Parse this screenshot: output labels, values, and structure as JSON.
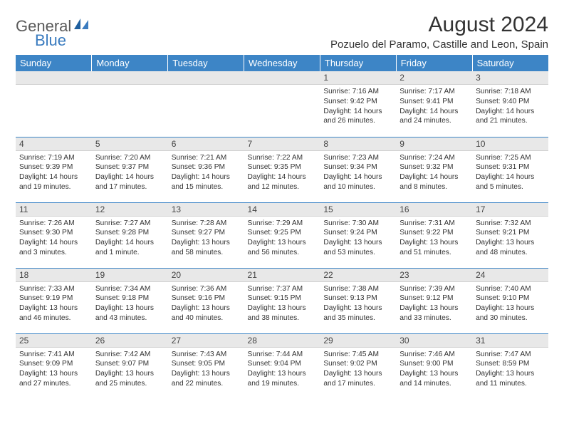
{
  "logo": {
    "text1": "General",
    "text2": "Blue"
  },
  "title": "August 2024",
  "location": "Pozuelo del Paramo, Castille and Leon, Spain",
  "weekdays": [
    "Sunday",
    "Monday",
    "Tuesday",
    "Wednesday",
    "Thursday",
    "Friday",
    "Saturday"
  ],
  "colors": {
    "header_bg": "#3d85c6",
    "header_fg": "#ffffff",
    "daynum_bg": "#e8e8e8",
    "border": "#3d85c6",
    "logo_gray": "#5a5a5a",
    "logo_blue": "#3a7bbf"
  },
  "weeks": [
    [
      null,
      null,
      null,
      null,
      {
        "n": "1",
        "sunrise": "Sunrise: 7:16 AM",
        "sunset": "Sunset: 9:42 PM",
        "daylight": "Daylight: 14 hours and 26 minutes."
      },
      {
        "n": "2",
        "sunrise": "Sunrise: 7:17 AM",
        "sunset": "Sunset: 9:41 PM",
        "daylight": "Daylight: 14 hours and 24 minutes."
      },
      {
        "n": "3",
        "sunrise": "Sunrise: 7:18 AM",
        "sunset": "Sunset: 9:40 PM",
        "daylight": "Daylight: 14 hours and 21 minutes."
      }
    ],
    [
      {
        "n": "4",
        "sunrise": "Sunrise: 7:19 AM",
        "sunset": "Sunset: 9:39 PM",
        "daylight": "Daylight: 14 hours and 19 minutes."
      },
      {
        "n": "5",
        "sunrise": "Sunrise: 7:20 AM",
        "sunset": "Sunset: 9:37 PM",
        "daylight": "Daylight: 14 hours and 17 minutes."
      },
      {
        "n": "6",
        "sunrise": "Sunrise: 7:21 AM",
        "sunset": "Sunset: 9:36 PM",
        "daylight": "Daylight: 14 hours and 15 minutes."
      },
      {
        "n": "7",
        "sunrise": "Sunrise: 7:22 AM",
        "sunset": "Sunset: 9:35 PM",
        "daylight": "Daylight: 14 hours and 12 minutes."
      },
      {
        "n": "8",
        "sunrise": "Sunrise: 7:23 AM",
        "sunset": "Sunset: 9:34 PM",
        "daylight": "Daylight: 14 hours and 10 minutes."
      },
      {
        "n": "9",
        "sunrise": "Sunrise: 7:24 AM",
        "sunset": "Sunset: 9:32 PM",
        "daylight": "Daylight: 14 hours and 8 minutes."
      },
      {
        "n": "10",
        "sunrise": "Sunrise: 7:25 AM",
        "sunset": "Sunset: 9:31 PM",
        "daylight": "Daylight: 14 hours and 5 minutes."
      }
    ],
    [
      {
        "n": "11",
        "sunrise": "Sunrise: 7:26 AM",
        "sunset": "Sunset: 9:30 PM",
        "daylight": "Daylight: 14 hours and 3 minutes."
      },
      {
        "n": "12",
        "sunrise": "Sunrise: 7:27 AM",
        "sunset": "Sunset: 9:28 PM",
        "daylight": "Daylight: 14 hours and 1 minute."
      },
      {
        "n": "13",
        "sunrise": "Sunrise: 7:28 AM",
        "sunset": "Sunset: 9:27 PM",
        "daylight": "Daylight: 13 hours and 58 minutes."
      },
      {
        "n": "14",
        "sunrise": "Sunrise: 7:29 AM",
        "sunset": "Sunset: 9:25 PM",
        "daylight": "Daylight: 13 hours and 56 minutes."
      },
      {
        "n": "15",
        "sunrise": "Sunrise: 7:30 AM",
        "sunset": "Sunset: 9:24 PM",
        "daylight": "Daylight: 13 hours and 53 minutes."
      },
      {
        "n": "16",
        "sunrise": "Sunrise: 7:31 AM",
        "sunset": "Sunset: 9:22 PM",
        "daylight": "Daylight: 13 hours and 51 minutes."
      },
      {
        "n": "17",
        "sunrise": "Sunrise: 7:32 AM",
        "sunset": "Sunset: 9:21 PM",
        "daylight": "Daylight: 13 hours and 48 minutes."
      }
    ],
    [
      {
        "n": "18",
        "sunrise": "Sunrise: 7:33 AM",
        "sunset": "Sunset: 9:19 PM",
        "daylight": "Daylight: 13 hours and 46 minutes."
      },
      {
        "n": "19",
        "sunrise": "Sunrise: 7:34 AM",
        "sunset": "Sunset: 9:18 PM",
        "daylight": "Daylight: 13 hours and 43 minutes."
      },
      {
        "n": "20",
        "sunrise": "Sunrise: 7:36 AM",
        "sunset": "Sunset: 9:16 PM",
        "daylight": "Daylight: 13 hours and 40 minutes."
      },
      {
        "n": "21",
        "sunrise": "Sunrise: 7:37 AM",
        "sunset": "Sunset: 9:15 PM",
        "daylight": "Daylight: 13 hours and 38 minutes."
      },
      {
        "n": "22",
        "sunrise": "Sunrise: 7:38 AM",
        "sunset": "Sunset: 9:13 PM",
        "daylight": "Daylight: 13 hours and 35 minutes."
      },
      {
        "n": "23",
        "sunrise": "Sunrise: 7:39 AM",
        "sunset": "Sunset: 9:12 PM",
        "daylight": "Daylight: 13 hours and 33 minutes."
      },
      {
        "n": "24",
        "sunrise": "Sunrise: 7:40 AM",
        "sunset": "Sunset: 9:10 PM",
        "daylight": "Daylight: 13 hours and 30 minutes."
      }
    ],
    [
      {
        "n": "25",
        "sunrise": "Sunrise: 7:41 AM",
        "sunset": "Sunset: 9:09 PM",
        "daylight": "Daylight: 13 hours and 27 minutes."
      },
      {
        "n": "26",
        "sunrise": "Sunrise: 7:42 AM",
        "sunset": "Sunset: 9:07 PM",
        "daylight": "Daylight: 13 hours and 25 minutes."
      },
      {
        "n": "27",
        "sunrise": "Sunrise: 7:43 AM",
        "sunset": "Sunset: 9:05 PM",
        "daylight": "Daylight: 13 hours and 22 minutes."
      },
      {
        "n": "28",
        "sunrise": "Sunrise: 7:44 AM",
        "sunset": "Sunset: 9:04 PM",
        "daylight": "Daylight: 13 hours and 19 minutes."
      },
      {
        "n": "29",
        "sunrise": "Sunrise: 7:45 AM",
        "sunset": "Sunset: 9:02 PM",
        "daylight": "Daylight: 13 hours and 17 minutes."
      },
      {
        "n": "30",
        "sunrise": "Sunrise: 7:46 AM",
        "sunset": "Sunset: 9:00 PM",
        "daylight": "Daylight: 13 hours and 14 minutes."
      },
      {
        "n": "31",
        "sunrise": "Sunrise: 7:47 AM",
        "sunset": "Sunset: 8:59 PM",
        "daylight": "Daylight: 13 hours and 11 minutes."
      }
    ]
  ]
}
